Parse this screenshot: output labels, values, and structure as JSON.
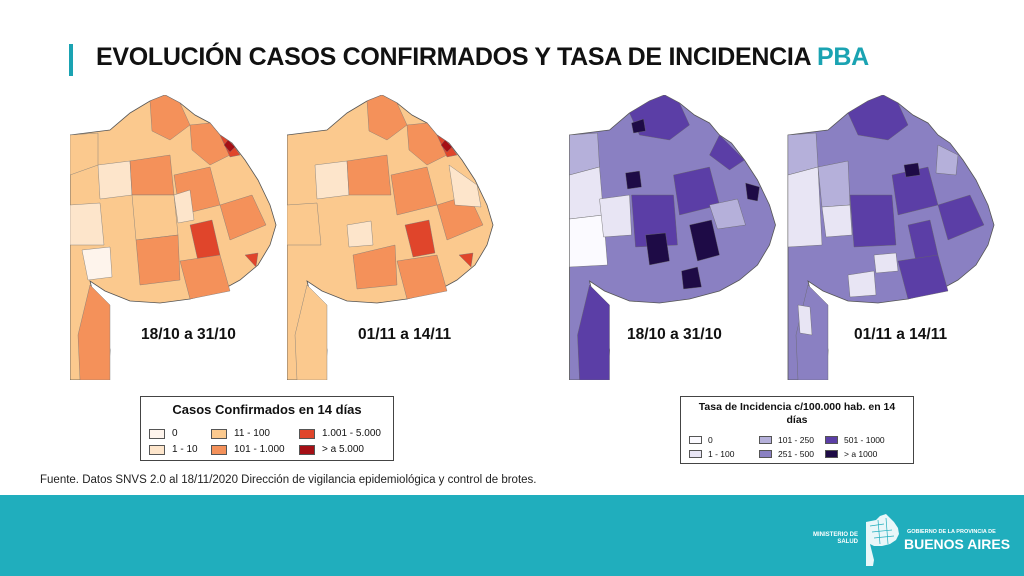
{
  "title": {
    "main": "EVOLUCIÓN CASOS CONFIRMADOS Y TASA DE INCIDENCIA",
    "accent": "PBA"
  },
  "maps": [
    {
      "label": "18/10 a 31/10",
      "layer": "casos"
    },
    {
      "label": "01/11 a 14/11",
      "layer": "casos"
    },
    {
      "label": "18/10 a 31/10",
      "layer": "tasa"
    },
    {
      "label": "01/11 a 14/11",
      "layer": "tasa"
    }
  ],
  "legend_casos": {
    "title": "Casos Confirmados en 14 días",
    "items": [
      {
        "label": "0",
        "color": "#fef4ec"
      },
      {
        "label": "1 - 10",
        "color": "#fde5cb"
      },
      {
        "label": "11 - 100",
        "color": "#fbc98e"
      },
      {
        "label": "101 - 1.000",
        "color": "#f4915a"
      },
      {
        "label": "1.001 - 5.000",
        "color": "#e0452b"
      },
      {
        "label": "> a 5.000",
        "color": "#a50f15"
      }
    ]
  },
  "legend_tasa": {
    "title": "Tasa de Incidencia c/100.000 hab. en 14 días",
    "items": [
      {
        "label": "0",
        "color": "#fbfaff"
      },
      {
        "label": "1 - 100",
        "color": "#e8e5f4"
      },
      {
        "label": "101 - 250",
        "color": "#b5b0da"
      },
      {
        "label": "251 - 500",
        "color": "#8a80c2"
      },
      {
        "label": "501 - 1000",
        "color": "#5b3ea6"
      },
      {
        "label": "> a 1000",
        "color": "#1e0b46"
      }
    ]
  },
  "source": "Fuente. Datos SNVS 2.0 al 18/11/2020 Dirección de vigilancia epidemiológica y control de brotes.",
  "footer": {
    "ministry": "MINISTERIO DE SALUD",
    "province_small": "GOBIERNO DE LA PROVINCIA DE",
    "province_big": "BUENOS AIRES"
  }
}
